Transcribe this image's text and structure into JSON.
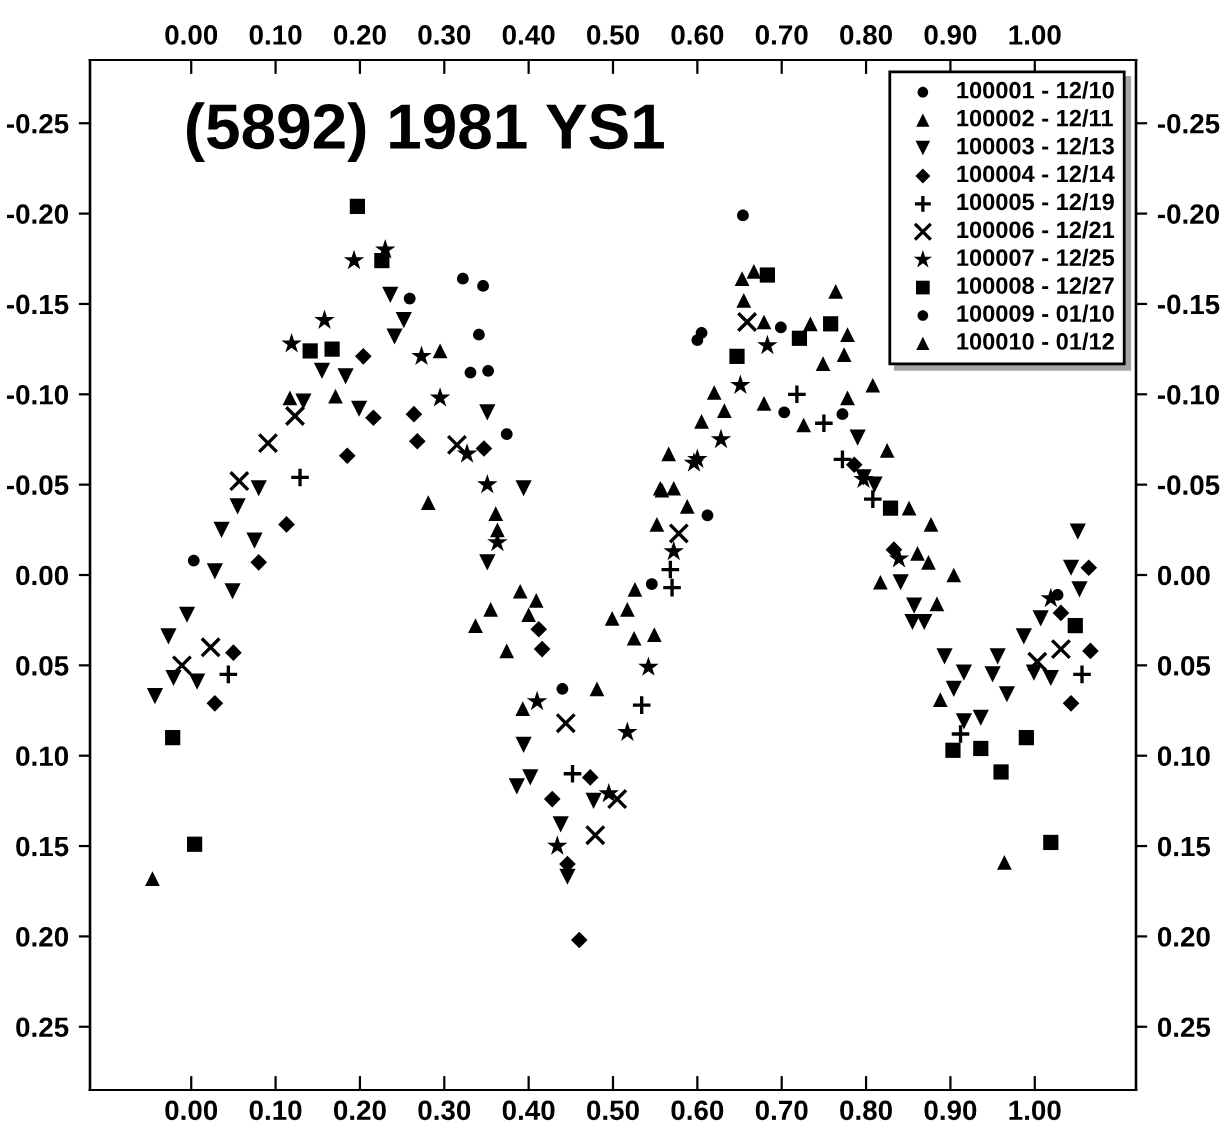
{
  "chart_data": {
    "type": "scatter",
    "title": "(5892) 1981 YS1",
    "xlim": [
      -0.12,
      1.12
    ],
    "x2lim": [
      -0.12,
      1.12
    ],
    "xticks": [
      {
        "value": 0,
        "label": "0.00"
      },
      {
        "value": 0.1,
        "label": "0.10"
      },
      {
        "value": 0.2,
        "label": "0.20"
      },
      {
        "value": 0.3,
        "label": "0.30"
      },
      {
        "value": 0.4,
        "label": "0.40"
      },
      {
        "value": 0.5,
        "label": "0.50"
      },
      {
        "value": 0.6,
        "label": "0.60"
      },
      {
        "value": 0.7,
        "label": "0.70"
      },
      {
        "value": 0.8,
        "label": "0.80"
      },
      {
        "value": 0.9,
        "label": "0.90"
      },
      {
        "value": 1.0,
        "label": "1.00"
      }
    ],
    "x2ticks": [
      {
        "value": 0,
        "label": "0.00"
      },
      {
        "value": 0.1,
        "label": "0.10"
      },
      {
        "value": 0.2,
        "label": "0.20"
      },
      {
        "value": 0.3,
        "label": "0.30"
      },
      {
        "value": 0.4,
        "label": "0.40"
      },
      {
        "value": 0.5,
        "label": "0.50"
      },
      {
        "value": 0.6,
        "label": "0.60"
      },
      {
        "value": 0.7,
        "label": "0.70"
      },
      {
        "value": 0.8,
        "label": "0.80"
      },
      {
        "value": 0.9,
        "label": "0.90"
      },
      {
        "value": 1.0,
        "label": "1.00"
      }
    ],
    "ylim": [
      0.285,
      -0.285
    ],
    "y2lim": [
      0.285,
      -0.285
    ],
    "yticks": [
      {
        "value": -0.25,
        "label": "-0.25"
      },
      {
        "value": -0.2,
        "label": "-0.20"
      },
      {
        "value": -0.15,
        "label": "-0.15"
      },
      {
        "value": -0.1,
        "label": "-0.10"
      },
      {
        "value": -0.05,
        "label": "-0.05"
      },
      {
        "value": 0,
        "label": "0.00"
      },
      {
        "value": 0.05,
        "label": "0.05"
      },
      {
        "value": 0.1,
        "label": "0.10"
      },
      {
        "value": 0.15,
        "label": "0.15"
      },
      {
        "value": 0.2,
        "label": "0.20"
      },
      {
        "value": 0.25,
        "label": "0.25"
      }
    ],
    "y2ticks": [
      {
        "value": -0.25,
        "label": "-0.25"
      },
      {
        "value": -0.2,
        "label": "-0.20"
      },
      {
        "value": -0.15,
        "label": "-0.15"
      },
      {
        "value": -0.1,
        "label": "-0.10"
      },
      {
        "value": -0.05,
        "label": "-0.05"
      },
      {
        "value": 0,
        "label": "0.00"
      },
      {
        "value": 0.05,
        "label": "0.05"
      },
      {
        "value": 0.1,
        "label": "0.10"
      },
      {
        "value": 0.15,
        "label": "0.15"
      },
      {
        "value": 0.2,
        "label": "0.20"
      },
      {
        "value": 0.25,
        "label": "0.25"
      }
    ],
    "grid": false,
    "legend": "top right",
    "series": [
      {
        "name": "100001 - 12/10",
        "color": "#000000",
        "marker": "circle",
        "x": [
          0.003,
          0.322,
          0.346,
          0.259,
          0.341,
          0.331,
          0.352,
          0.374,
          0.44,
          0.546
        ],
        "values": [
          -0.008,
          -0.164,
          -0.16,
          -0.153,
          -0.133,
          -0.112,
          -0.113,
          -0.078,
          0.063,
          0.005
        ]
      },
      {
        "name": "100002 - 12/11",
        "color": "#000000",
        "marker": "triangle",
        "x": [
          -0.046,
          0.117,
          0.171,
          0.281,
          0.361,
          0.39,
          0.355,
          0.337,
          0.409,
          0.4,
          0.481,
          0.374,
          0.393,
          0.295,
          0.363
        ],
        "values": [
          0.168,
          -0.098,
          -0.099,
          -0.04,
          -0.034,
          0.009,
          0.019,
          0.028,
          0.014,
          0.022,
          0.063,
          0.042,
          0.074,
          -0.124,
          -0.025
        ]
      },
      {
        "name": "100003 - 12/13",
        "color": "#000000",
        "marker": "triangle_down",
        "x": [
          -0.043,
          -0.027,
          -0.021,
          0.007,
          0.036,
          0.055,
          0.028,
          0.049,
          0.08,
          0.133,
          0.155,
          0.183,
          0.199,
          0.252,
          0.241,
          0.236,
          -0.005,
          0.075,
          0.351,
          0.394,
          0.386,
          0.402,
          0.438,
          0.446,
          0.394,
          0.477,
          0.351,
          0.79,
          0.797,
          0.841,
          0.855,
          0.81,
          1.051,
          1.043,
          1.053,
          0.869,
          0.893,
          0.916,
          0.904,
          0.936,
          0.916,
          0.956,
          0.95,
          0.967,
          0.987,
          0.999,
          1.019,
          1.007,
          0.857
        ],
        "values": [
          0.067,
          0.034,
          0.057,
          0.059,
          -0.025,
          -0.038,
          -0.002,
          0.009,
          -0.048,
          -0.096,
          -0.113,
          -0.11,
          -0.092,
          -0.141,
          -0.132,
          -0.155,
          0.022,
          -0.019,
          -0.09,
          -0.048,
          0.117,
          0.112,
          0.138,
          0.167,
          0.094,
          0.125,
          -0.007,
          -0.076,
          -0.054,
          0.004,
          0.026,
          -0.05,
          -0.024,
          -0.004,
          0.008,
          0.026,
          0.045,
          0.054,
          0.063,
          0.079,
          0.081,
          0.045,
          0.055,
          0.066,
          0.034,
          0.054,
          0.057,
          0.024,
          0.017
        ]
      },
      {
        "name": "100004 - 12/14",
        "color": "#000000",
        "marker": "diamond",
        "x": [
          0.028,
          0.05,
          0.08,
          0.113,
          0.185,
          0.216,
          0.264,
          0.204,
          0.46,
          0.428,
          0.473,
          0.412,
          0.268,
          0.347,
          0.416,
          0.446,
          0.786,
          0.833,
          1.064,
          1.066,
          1.043,
          1.031
        ],
        "values": [
          0.071,
          0.043,
          -0.007,
          -0.028,
          -0.066,
          -0.087,
          -0.089,
          -0.121,
          0.202,
          0.124,
          0.112,
          0.03,
          -0.074,
          -0.07,
          0.041,
          0.16,
          -0.061,
          -0.014,
          -0.004,
          0.042,
          0.071,
          0.021
        ]
      },
      {
        "name": "100005 - 12/19",
        "color": "#000000",
        "marker": "plus",
        "x": [
          0.044,
          0.129,
          0.534,
          0.57,
          0.452,
          0.718,
          0.75,
          0.772,
          0.568,
          0.808,
          1.056,
          0.912
        ],
        "values": [
          0.055,
          -0.054,
          0.072,
          0.007,
          0.11,
          -0.1,
          -0.084,
          -0.064,
          -0.003,
          -0.042,
          0.055,
          0.088
        ]
      },
      {
        "name": "100006 - 12/21",
        "color": "#000000",
        "marker": "cross",
        "x": [
          0.057,
          0.091,
          0.023,
          -0.011,
          0.123,
          0.444,
          0.505,
          0.479,
          0.578,
          0.315,
          0.659,
          1.031,
          1.003
        ],
        "values": [
          -0.052,
          -0.073,
          0.04,
          0.05,
          -0.088,
          0.082,
          0.124,
          0.144,
          -0.023,
          -0.072,
          -0.14,
          0.041,
          0.048
        ]
      },
      {
        "name": "100007 - 12/25",
        "color": "#000000",
        "marker": "star",
        "x": [
          0.193,
          0.23,
          0.158,
          0.119,
          0.273,
          0.295,
          0.327,
          0.351,
          0.363,
          0.41,
          0.434,
          0.495,
          0.517,
          0.542,
          0.572,
          0.596,
          0.683,
          0.651,
          0.628,
          0.6,
          0.797,
          0.839,
          1.019
        ],
        "values": [
          -0.174,
          -0.18,
          -0.141,
          -0.128,
          -0.121,
          -0.098,
          -0.067,
          -0.05,
          -0.018,
          0.07,
          0.15,
          0.121,
          0.087,
          0.051,
          -0.013,
          -0.062,
          -0.127,
          -0.105,
          -0.075,
          -0.064,
          -0.053,
          -0.009,
          0.013
        ]
      },
      {
        "name": "100008 - 12/27",
        "color": "#000000",
        "marker": "square",
        "x": [
          -0.022,
          0.004,
          0.197,
          0.226,
          0.141,
          0.167,
          0.683,
          0.647,
          0.758,
          0.829,
          0.721,
          0.903,
          0.936,
          0.99,
          0.96,
          1.019,
          1.048
        ],
        "values": [
          0.09,
          0.149,
          -0.204,
          -0.174,
          -0.124,
          -0.125,
          -0.166,
          -0.121,
          -0.139,
          -0.037,
          -0.131,
          0.097,
          0.096,
          0.09,
          0.109,
          0.148,
          0.028
        ]
      },
      {
        "name": "100009 - 01/10",
        "color": "#000000",
        "marker": "circle",
        "x": [
          0.6,
          0.654,
          0.699,
          0.703,
          0.772,
          0.612,
          0.605,
          1.027
        ],
        "values": [
          -0.13,
          -0.199,
          -0.137,
          -0.09,
          -0.089,
          -0.033,
          -0.134,
          0.011
        ]
      },
      {
        "name": "100010 - 01/12",
        "color": "#000000",
        "marker": "triangle",
        "x": [
          0.566,
          0.552,
          0.526,
          0.499,
          0.517,
          0.525,
          0.549,
          0.558,
          0.572,
          0.653,
          0.667,
          0.655,
          0.764,
          0.778,
          0.734,
          0.749,
          0.679,
          0.726,
          0.774,
          0.808,
          0.62,
          0.632,
          0.605,
          0.825,
          0.851,
          0.817,
          0.679,
          0.778,
          0.556,
          0.588,
          0.877,
          0.874,
          0.904,
          0.884,
          0.888,
          0.964,
          0.861
        ],
        "values": [
          -0.067,
          -0.028,
          0.008,
          0.024,
          0.019,
          0.035,
          0.033,
          -0.047,
          -0.048,
          -0.164,
          -0.168,
          -0.152,
          -0.157,
          -0.133,
          -0.139,
          -0.117,
          -0.095,
          -0.083,
          -0.122,
          -0.105,
          -0.101,
          -0.091,
          -0.085,
          -0.069,
          -0.037,
          0.004,
          -0.14,
          -0.098,
          -0.048,
          -0.038,
          -0.028,
          -0.007,
          0.0,
          0.016,
          0.069,
          0.159,
          -0.012
        ]
      }
    ]
  }
}
